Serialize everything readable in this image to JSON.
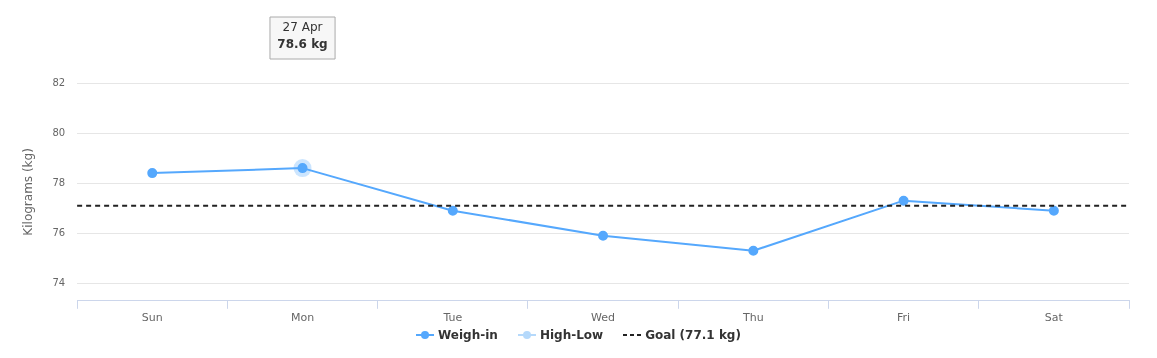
{
  "chart_data": {
    "type": "line",
    "ylabel": "Kilograms (kg)",
    "categories": [
      "Sun",
      "Mon",
      "Tue",
      "Wed",
      "Thu",
      "Fri",
      "Sat"
    ],
    "series": [
      {
        "name": "Weigh-in",
        "color": "#55a8fd",
        "values": [
          78.4,
          78.6,
          76.9,
          75.9,
          75.3,
          77.3,
          76.9
        ]
      },
      {
        "name": "High-Low",
        "color": "#b5d9fb",
        "values": [
          null,
          null,
          null,
          null,
          null,
          null,
          null
        ]
      }
    ],
    "ylim": [
      73.3,
      82
    ],
    "yticks": [
      74,
      76,
      78,
      80,
      82
    ],
    "grid": "y",
    "marker": "circle",
    "legend": "bottom",
    "ref_lines": [
      {
        "axis": "y",
        "value": 77.1,
        "label": "Goal (77.1 kg)",
        "color": "#222222",
        "line_style": "dashed"
      }
    ],
    "annotations": [
      "27 Apr",
      "78.6 kg"
    ]
  }
}
